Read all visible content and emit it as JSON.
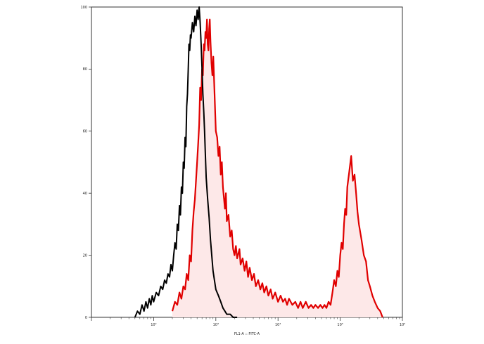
{
  "chart_data": {
    "type": "histogram",
    "xscale": "log",
    "xlabel": "FL1-A :: FITC-A",
    "xlim": [
      10,
      1000000
    ],
    "ylim": [
      0,
      100
    ],
    "yticks": [
      0,
      20,
      40,
      60,
      80,
      100
    ],
    "ytick_labels": [
      "0",
      "20",
      "40",
      "60",
      "80",
      "100"
    ],
    "xtick_labels": [
      "10²",
      "10³",
      "10⁴",
      "10⁵",
      "10⁶"
    ],
    "series": [
      {
        "color": "#000000",
        "filled": false,
        "points": [
          [
            50,
            0
          ],
          [
            55,
            2
          ],
          [
            60,
            1
          ],
          [
            65,
            4
          ],
          [
            70,
            2
          ],
          [
            75,
            5
          ],
          [
            80,
            3
          ],
          [
            85,
            6
          ],
          [
            90,
            4
          ],
          [
            95,
            7
          ],
          [
            100,
            5
          ],
          [
            110,
            8
          ],
          [
            120,
            7
          ],
          [
            130,
            10
          ],
          [
            140,
            9
          ],
          [
            150,
            12
          ],
          [
            160,
            11
          ],
          [
            170,
            14
          ],
          [
            180,
            13
          ],
          [
            190,
            17
          ],
          [
            200,
            15
          ],
          [
            210,
            20
          ],
          [
            220,
            24
          ],
          [
            230,
            22
          ],
          [
            240,
            30
          ],
          [
            250,
            28
          ],
          [
            260,
            36
          ],
          [
            270,
            33
          ],
          [
            280,
            42
          ],
          [
            290,
            40
          ],
          [
            300,
            50
          ],
          [
            310,
            48
          ],
          [
            320,
            58
          ],
          [
            330,
            55
          ],
          [
            340,
            68
          ],
          [
            350,
            72
          ],
          [
            360,
            80
          ],
          [
            370,
            88
          ],
          [
            380,
            86
          ],
          [
            390,
            91
          ],
          [
            400,
            90
          ],
          [
            420,
            95
          ],
          [
            440,
            92
          ],
          [
            460,
            97
          ],
          [
            480,
            94
          ],
          [
            500,
            99
          ],
          [
            520,
            96
          ],
          [
            540,
            100
          ],
          [
            560,
            95
          ],
          [
            580,
            88
          ],
          [
            600,
            80
          ],
          [
            620,
            72
          ],
          [
            640,
            66
          ],
          [
            660,
            60
          ],
          [
            680,
            52
          ],
          [
            700,
            45
          ],
          [
            740,
            38
          ],
          [
            780,
            32
          ],
          [
            820,
            25
          ],
          [
            860,
            20
          ],
          [
            900,
            15
          ],
          [
            950,
            12
          ],
          [
            1000,
            9
          ],
          [
            1100,
            7
          ],
          [
            1200,
            5
          ],
          [
            1300,
            3
          ],
          [
            1400,
            2
          ],
          [
            1500,
            1
          ],
          [
            1700,
            1
          ],
          [
            1900,
            0
          ],
          [
            2200,
            0
          ]
        ]
      },
      {
        "color": "#e00000",
        "fill": "#fde8e8",
        "filled": true,
        "points": [
          [
            200,
            2
          ],
          [
            220,
            5
          ],
          [
            240,
            4
          ],
          [
            260,
            8
          ],
          [
            280,
            6
          ],
          [
            300,
            10
          ],
          [
            320,
            9
          ],
          [
            340,
            14
          ],
          [
            360,
            12
          ],
          [
            380,
            20
          ],
          [
            400,
            18
          ],
          [
            420,
            28
          ],
          [
            440,
            34
          ],
          [
            460,
            38
          ],
          [
            480,
            44
          ],
          [
            500,
            50
          ],
          [
            520,
            56
          ],
          [
            540,
            62
          ],
          [
            560,
            74
          ],
          [
            580,
            70
          ],
          [
            600,
            80
          ],
          [
            620,
            78
          ],
          [
            640,
            88
          ],
          [
            660,
            86
          ],
          [
            680,
            92
          ],
          [
            700,
            90
          ],
          [
            720,
            96
          ],
          [
            740,
            88
          ],
          [
            760,
            86
          ],
          [
            780,
            93
          ],
          [
            800,
            96
          ],
          [
            820,
            89
          ],
          [
            850,
            82
          ],
          [
            880,
            78
          ],
          [
            910,
            84
          ],
          [
            940,
            76
          ],
          [
            970,
            68
          ],
          [
            1000,
            60
          ],
          [
            1050,
            58
          ],
          [
            1100,
            52
          ],
          [
            1150,
            55
          ],
          [
            1200,
            46
          ],
          [
            1250,
            50
          ],
          [
            1300,
            42
          ],
          [
            1400,
            35
          ],
          [
            1450,
            40
          ],
          [
            1500,
            31
          ],
          [
            1600,
            33
          ],
          [
            1700,
            26
          ],
          [
            1800,
            28
          ],
          [
            1900,
            22
          ],
          [
            2000,
            20
          ],
          [
            2100,
            23
          ],
          [
            2200,
            19
          ],
          [
            2400,
            22
          ],
          [
            2500,
            17
          ],
          [
            2700,
            19
          ],
          [
            2900,
            15
          ],
          [
            3100,
            18
          ],
          [
            3300,
            13
          ],
          [
            3500,
            16
          ],
          [
            3800,
            12
          ],
          [
            4100,
            14
          ],
          [
            4400,
            10
          ],
          [
            4800,
            12
          ],
          [
            5200,
            9
          ],
          [
            5600,
            11
          ],
          [
            6000,
            8
          ],
          [
            6500,
            10
          ],
          [
            7000,
            7
          ],
          [
            7600,
            9
          ],
          [
            8200,
            6
          ],
          [
            9000,
            8
          ],
          [
            10000,
            5
          ],
          [
            11000,
            7
          ],
          [
            12000,
            5
          ],
          [
            13000,
            6
          ],
          [
            14000,
            4
          ],
          [
            15000,
            6
          ],
          [
            17000,
            4
          ],
          [
            19000,
            5
          ],
          [
            21000,
            3
          ],
          [
            23000,
            5
          ],
          [
            25000,
            3
          ],
          [
            28000,
            5
          ],
          [
            31000,
            3
          ],
          [
            34000,
            4
          ],
          [
            37000,
            3
          ],
          [
            40000,
            4
          ],
          [
            44000,
            3
          ],
          [
            48000,
            4
          ],
          [
            52000,
            3
          ],
          [
            56000,
            4
          ],
          [
            60000,
            3
          ],
          [
            65000,
            5
          ],
          [
            70000,
            4
          ],
          [
            75000,
            8
          ],
          [
            80000,
            12
          ],
          [
            85000,
            10
          ],
          [
            90000,
            15
          ],
          [
            95000,
            13
          ],
          [
            100000,
            20
          ],
          [
            105000,
            24
          ],
          [
            110000,
            22
          ],
          [
            115000,
            30
          ],
          [
            120000,
            35
          ],
          [
            125000,
            33
          ],
          [
            130000,
            42
          ],
          [
            140000,
            47
          ],
          [
            150000,
            52
          ],
          [
            160000,
            44
          ],
          [
            170000,
            46
          ],
          [
            180000,
            40
          ],
          [
            190000,
            34
          ],
          [
            200000,
            30
          ],
          [
            220000,
            25
          ],
          [
            240000,
            20
          ],
          [
            260000,
            18
          ],
          [
            280000,
            12
          ],
          [
            300000,
            10
          ],
          [
            330000,
            7
          ],
          [
            360000,
            5
          ],
          [
            400000,
            3
          ],
          [
            440000,
            2
          ],
          [
            480000,
            0
          ]
        ]
      }
    ]
  }
}
